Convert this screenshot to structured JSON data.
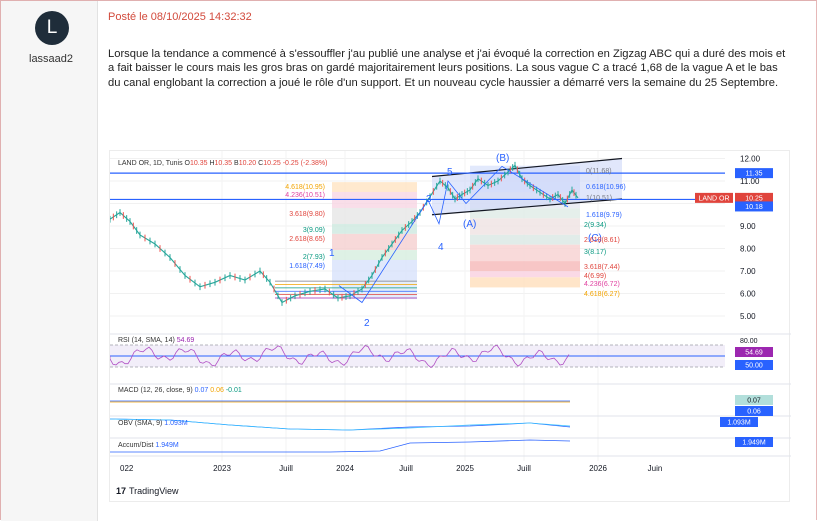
{
  "sidebar": {
    "avatar_letter": "L",
    "username": "lassaad2"
  },
  "post": {
    "meta": "Posté le 08/10/2025 14:32:32",
    "text": "Lorsque la tendance a commencé à s'essouffler j'au publié une analyse et j'ai évoqué la correction en Zigzag ABC qui a duré des mois et a fait baisser le cours mais les gros bras on gardé majoritairement leurs positions. La sous vague C a tracé 1,68 de la vague A et le bas du canal englobant la correction a joué le rôle d'un support. Et un nouveau cycle haussier a démarré vers la semaine du 25 Septembre."
  },
  "chart": {
    "header": {
      "symbol": "LAND OR, 1D, Tunis",
      "o_label": "O",
      "o": "10.35",
      "h_label": "H",
      "h": "10.35",
      "b_label": "B",
      "b": "10.20",
      "c_label": "C",
      "c": "10.25",
      "chg": "-0.25 (-2.38%)"
    },
    "price_axis": [
      "12.00",
      "11.00",
      "10.00",
      "9.00",
      "8.00",
      "7.00",
      "6.00",
      "5.00"
    ],
    "price_badges": [
      {
        "label": "11.35",
        "color": "#2962ff"
      },
      {
        "label": "LAND OR",
        "color": "#e0443c"
      },
      {
        "label": "10.25",
        "color": "#e0443c"
      },
      {
        "label": "10.18",
        "color": "#2962ff"
      }
    ],
    "fib_left": [
      {
        "label": "4.618(10.95)",
        "color": "#f2a300"
      },
      {
        "label": "4.236(10.51)",
        "color": "#e040a0"
      },
      {
        "label": "3.618(9.80)",
        "color": "#e0443c"
      },
      {
        "label": "3(9.09)",
        "color": "#089981"
      },
      {
        "label": "2.618(8.65)",
        "color": "#e0443c"
      },
      {
        "label": "2(7.93)",
        "color": "#089981"
      },
      {
        "label": "1.618(7.49)",
        "color": "#2962ff"
      }
    ],
    "fib_right_top": [
      {
        "label": "0(11.68)",
        "color": "#787b86"
      },
      {
        "label": "0.618(10.96)",
        "color": "#2962ff"
      },
      {
        "label": "1(10.51)",
        "color": "#787b86"
      },
      {
        "label": "1.618(9.79)",
        "color": "#2962ff"
      }
    ],
    "fib_right_bottom": [
      {
        "label": "2(9.34)",
        "color": "#089981"
      },
      {
        "label": "2.618(8.61)",
        "color": "#e0443c"
      },
      {
        "label": "3(8.17)",
        "color": "#089981"
      },
      {
        "label": "3.618(7.44)",
        "color": "#e0443c"
      },
      {
        "label": "4(6.99)",
        "color": "#e0443c"
      },
      {
        "label": "4.236(6.72)",
        "color": "#e040a0"
      },
      {
        "label": "4.618(6.27)",
        "color": "#f2a300"
      }
    ],
    "wave_labels": [
      "1",
      "2",
      "3",
      "4",
      "5",
      "(A)",
      "(B)",
      "(C)"
    ],
    "rsi": {
      "label": "RSI (14, SMA, 14)",
      "value": "54.69",
      "axis": [
        "80.00",
        "54.69",
        "50.00"
      ]
    },
    "macd": {
      "label": "MACD (12, 26, close, 9)",
      "v1": "0.07",
      "v2": "0.06",
      "v3": "-0.01",
      "badges": [
        "0.07",
        "0.06"
      ]
    },
    "obv": {
      "label": "OBV (SMA, 9)",
      "value": "1.093M",
      "badge": "1.093M"
    },
    "accum": {
      "label": "Accum/Dist",
      "value": "1.949M",
      "badge": "1.949M"
    },
    "time_axis": [
      "022",
      "2023",
      "Juill",
      "2024",
      "Juill",
      "2025",
      "Juill",
      "2026",
      "Juin"
    ],
    "footer": "TradingView"
  }
}
